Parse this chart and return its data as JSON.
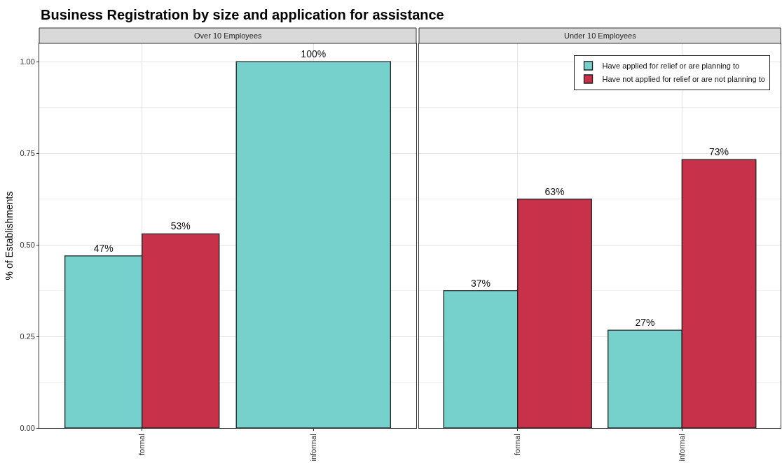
{
  "chart_data": [
    {
      "type": "bar",
      "title": "Business Registration by size and application for assistance",
      "subtitle": "Over 10 Employees",
      "ylabel": "% of Establishments",
      "categories": [
        "formal",
        "informal"
      ],
      "series": [
        {
          "color": "#76d0cc",
          "values": [
            0.47,
            1.0
          ],
          "value_labels": [
            "47%",
            "100%"
          ]
        },
        {
          "color": "#c8314a",
          "values": [
            0.53,
            null
          ],
          "value_labels": [
            "53%",
            null
          ]
        }
      ],
      "ylim": [
        0,
        1.05
      ],
      "yticks": [
        {
          "value": 0,
          "label": "0.00"
        },
        {
          "value": 0.25,
          "label": "0.25"
        },
        {
          "value": 0.5,
          "label": "0.50"
        },
        {
          "value": 0.75,
          "label": "0.75"
        },
        {
          "value": 1,
          "label": "1.00"
        }
      ],
      "grid": true,
      "legend": false
    },
    {
      "type": "bar",
      "subtitle": "Under 10 Employees",
      "categories": [
        "formal",
        "informal"
      ],
      "series": [
        {
          "name": "Have applied for relief or are planning to",
          "color": "#76d0cc",
          "values": [
            0.375,
            0.267
          ],
          "value_labels": [
            "37%",
            "27%"
          ]
        },
        {
          "name": "Have not applied for relief or are not planning to",
          "color": "#c8314a",
          "values": [
            0.625,
            0.733
          ],
          "value_labels": [
            "63%",
            "73%"
          ]
        }
      ],
      "ylim": [
        0,
        1.05
      ],
      "yticks": [
        {
          "value": 0,
          "label": null
        },
        {
          "value": 0.25,
          "label": null
        },
        {
          "value": 0.5,
          "label": null
        },
        {
          "value": 0.75,
          "label": null
        },
        {
          "value": 1,
          "label": null
        }
      ],
      "grid": true,
      "legend": "top right",
      "tick_labels": "x"
    }
  ]
}
